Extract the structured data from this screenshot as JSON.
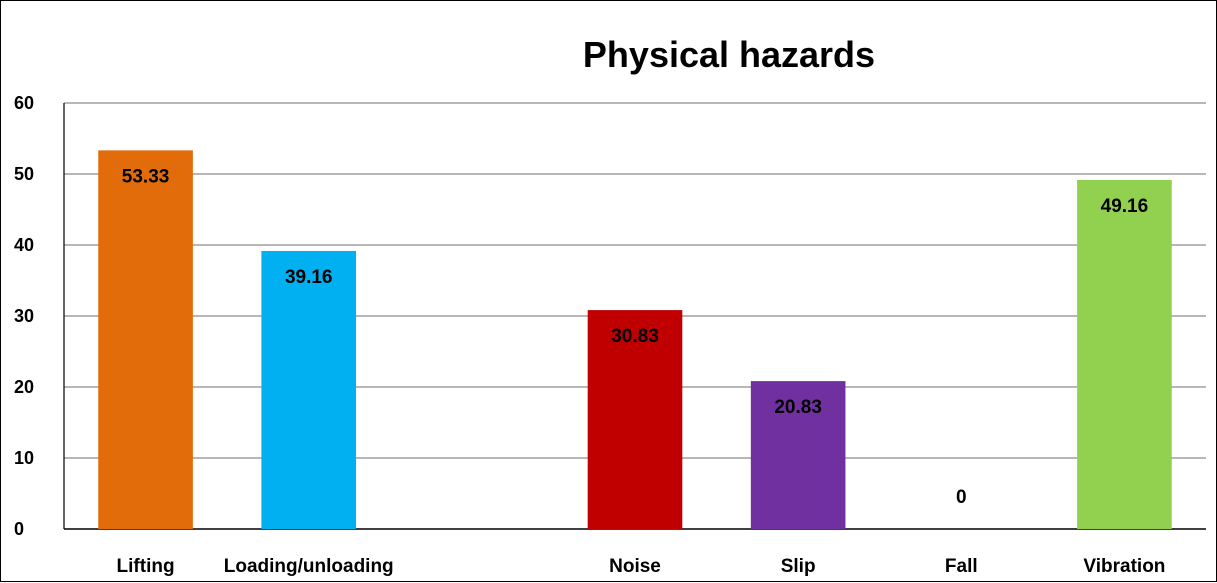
{
  "chart_data": {
    "type": "bar",
    "title": "Physical hazards",
    "xlabel": "",
    "ylabel": "",
    "categories": [
      "Lifting",
      "Loading/unloading",
      "",
      "Noise",
      "Slip",
      "Fall",
      "Vibration"
    ],
    "values": [
      53.33,
      39.16,
      null,
      30.83,
      20.83,
      0,
      49.16
    ],
    "data_labels": [
      "53.33",
      "39.16",
      "",
      "30.83",
      "20.83",
      "0",
      "49.16"
    ],
    "colors": [
      "#E36C0A",
      "#00B0F0",
      "",
      "#C00000",
      "#7030A0",
      "",
      "#92D050"
    ],
    "ylim": [
      0,
      60
    ],
    "yticks": [
      0,
      10,
      20,
      30,
      40,
      50,
      60
    ],
    "grid": true,
    "legend": "none"
  }
}
